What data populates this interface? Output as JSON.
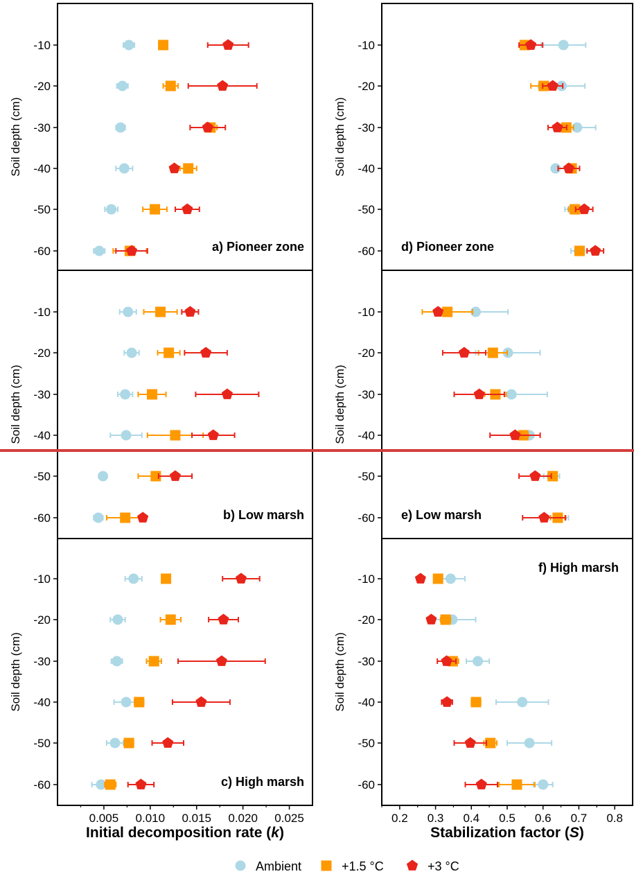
{
  "chart_data": {
    "type": "scatter",
    "legend": {
      "placement": "bottom",
      "entries": [
        {
          "name": "Ambient",
          "color": "#add8e6",
          "marker": "circle"
        },
        {
          "name": "+1.5 °C",
          "color": "#ff9900",
          "marker": "square"
        },
        {
          "name": "+3 °C",
          "color": "#e8251b",
          "marker": "pentagon"
        }
      ]
    },
    "ylabel": "Soil depth (cm)",
    "y_ticks": [
      -10,
      -20,
      -30,
      -40,
      -50,
      -60
    ],
    "y_tick_labels": [
      "-10",
      "-20",
      "-30",
      "-40",
      "-50",
      "-60"
    ],
    "columns": [
      {
        "xlabel_main": "Initial decomposition rate (",
        "xlabel_symbol": "k",
        "xlabel_end": ")",
        "xlim": [
          0.0,
          0.0275
        ],
        "x_ticks": [
          0.005,
          0.01,
          0.015,
          0.02,
          0.025
        ],
        "x_tick_labels": [
          "0.005",
          "0.010",
          "0.015",
          "0.020",
          "0.025"
        ]
      },
      {
        "xlabel_main": "Stabilization factor (",
        "xlabel_symbol": "S",
        "xlabel_end": ")",
        "xlim": [
          0.15,
          0.85
        ],
        "x_ticks": [
          0.2,
          0.3,
          0.4,
          0.5,
          0.6,
          0.7,
          0.8
        ],
        "x_tick_labels": [
          "0.2",
          "0.3",
          "0.4",
          "0.5",
          "0.6",
          "0.7",
          "0.8"
        ]
      }
    ],
    "panels": [
      {
        "label": "a) Pioneer zone",
        "col": 0,
        "row": 0,
        "label_pos": "bottom-right",
        "depths": [
          -10,
          -20,
          -30,
          -40,
          -50,
          -60
        ],
        "series": [
          {
            "name": "Ambient",
            "values": [
              0.0077,
              0.007,
              0.0068,
              0.0072,
              0.0058,
              0.0045
            ],
            "errors": [
              0.0006,
              0.0006,
              0.0005,
              0.0009,
              0.0007,
              0.0006
            ]
          },
          {
            "name": "+1.5 °C",
            "values": [
              0.0114,
              0.0122,
              0.0165,
              0.0141,
              0.0105,
              0.0078
            ],
            "errors": [
              0.0004,
              0.0008,
              0.0007,
              0.0009,
              0.0013,
              0.0018
            ]
          },
          {
            "name": "+3 °C",
            "values": [
              0.0184,
              0.0178,
              0.0162,
              0.0126,
              0.014,
              0.008
            ],
            "errors": [
              0.0022,
              0.0037,
              0.0019,
              0.0004,
              0.0013,
              0.0017
            ]
          }
        ]
      },
      {
        "label": "b) Low marsh",
        "col": 0,
        "row": 1,
        "label_pos": "bottom-right",
        "depths": [
          -10,
          -20,
          -30,
          -40,
          -50,
          -60
        ],
        "series": [
          {
            "name": "Ambient",
            "values": [
              0.0076,
              0.008,
              0.0073,
              0.0074,
              0.0049,
              0.0044
            ],
            "errors": [
              0.0009,
              0.0008,
              0.0008,
              0.0017,
              0.0003,
              0.0005
            ]
          },
          {
            "name": "+1.5 °C",
            "values": [
              0.0111,
              0.012,
              0.0102,
              0.0127,
              0.0106,
              0.0073
            ],
            "errors": [
              0.0018,
              0.0012,
              0.0015,
              0.003,
              0.0019,
              0.002
            ]
          },
          {
            "name": "+3 °C",
            "values": [
              0.0143,
              0.016,
              0.0183,
              0.0168,
              0.0127,
              0.0092
            ],
            "errors": [
              0.0009,
              0.0023,
              0.0034,
              0.0023,
              0.0018,
              0.0004
            ]
          }
        ]
      },
      {
        "label": "c) High marsh",
        "col": 0,
        "row": 2,
        "label_pos": "bottom-right",
        "depths": [
          -10,
          -20,
          -30,
          -40,
          -50,
          -60
        ],
        "series": [
          {
            "name": "Ambient",
            "values": [
              0.0082,
              0.0065,
              0.0064,
              0.0074,
              0.0062,
              0.0047
            ],
            "errors": [
              0.0009,
              0.0008,
              0.0006,
              0.0013,
              0.0009,
              0.001
            ]
          },
          {
            "name": "+1.5 °C",
            "values": [
              0.0117,
              0.0122,
              0.0104,
              0.0088,
              0.0077,
              0.0057
            ],
            "errors": [
              0.0004,
              0.0011,
              0.0008,
              0.0005,
              0.0005,
              0.0006
            ]
          },
          {
            "name": "+3 °C",
            "values": [
              0.0198,
              0.0179,
              0.0177,
              0.0155,
              0.0119,
              0.009
            ],
            "errors": [
              0.002,
              0.0016,
              0.0047,
              0.0031,
              0.0017,
              0.0014
            ]
          }
        ]
      },
      {
        "label": "d) Pioneer zone",
        "col": 1,
        "row": 0,
        "label_pos": "bottom-left",
        "depths": [
          -10,
          -20,
          -30,
          -40,
          -50,
          -60
        ],
        "series": [
          {
            "name": "Ambient",
            "values": [
              0.657,
              0.652,
              0.695,
              0.635,
              0.682,
              0.7
            ],
            "errors": [
              0.062,
              0.065,
              0.052,
              0.009,
              0.021,
              0.022
            ]
          },
          {
            "name": "+1.5 °C",
            "values": [
              0.549,
              0.602,
              0.665,
              0.68,
              0.689,
              0.702
            ],
            "errors": [
              0.009,
              0.036,
              0.02,
              0.01,
              0.018,
              0.012
            ]
          },
          {
            "name": "+3 °C",
            "values": [
              0.566,
              0.627,
              0.64,
              0.672,
              0.715,
              0.746
            ],
            "errors": [
              0.033,
              0.028,
              0.026,
              0.03,
              0.024,
              0.023
            ]
          }
        ]
      },
      {
        "label": "e) Low marsh",
        "col": 1,
        "row": 1,
        "label_pos": "bottom-left",
        "depths": [
          -10,
          -20,
          -30,
          -40,
          -50,
          -60
        ],
        "series": [
          {
            "name": "Ambient",
            "values": [
              0.412,
              0.502,
              0.512,
              0.562,
              0.624,
              0.641
            ],
            "errors": [
              0.09,
              0.09,
              0.1,
              0.012,
              0.022,
              0.03
            ]
          },
          {
            "name": "+1.5 °C",
            "values": [
              0.333,
              0.46,
              0.467,
              0.545,
              0.627,
              0.641
            ],
            "errors": [
              0.07,
              0.04,
              0.03,
              0.014,
              0.01,
              0.02
            ]
          },
          {
            "name": "+3 °C",
            "values": [
              0.307,
              0.38,
              0.422,
              0.522,
              0.578,
              0.603
            ],
            "errors": [
              0.01,
              0.06,
              0.07,
              0.07,
              0.045,
              0.06
            ]
          }
        ]
      },
      {
        "label": "f) High marsh",
        "col": 1,
        "row": 2,
        "label_pos": "top-right",
        "depths": [
          -10,
          -20,
          -30,
          -40,
          -50,
          -60
        ],
        "series": [
          {
            "name": "Ambient",
            "values": [
              0.342,
              0.347,
              0.418,
              0.542,
              0.562,
              0.6
            ],
            "errors": [
              0.04,
              0.065,
              0.032,
              0.073,
              0.062,
              0.027
            ]
          },
          {
            "name": "+1.5 °C",
            "values": [
              0.307,
              0.328,
              0.348,
              0.413,
              0.453,
              0.527
            ],
            "errors": [
              0.004,
              0.014,
              0.016,
              0.013,
              0.018,
              0.05
            ]
          },
          {
            "name": "+3 °C",
            "values": [
              0.258,
              0.288,
              0.331,
              0.332,
              0.397,
              0.428
            ],
            "errors": [
              0.006,
              0.01,
              0.026,
              0.015,
              0.045,
              0.045
            ]
          }
        ]
      }
    ]
  }
}
